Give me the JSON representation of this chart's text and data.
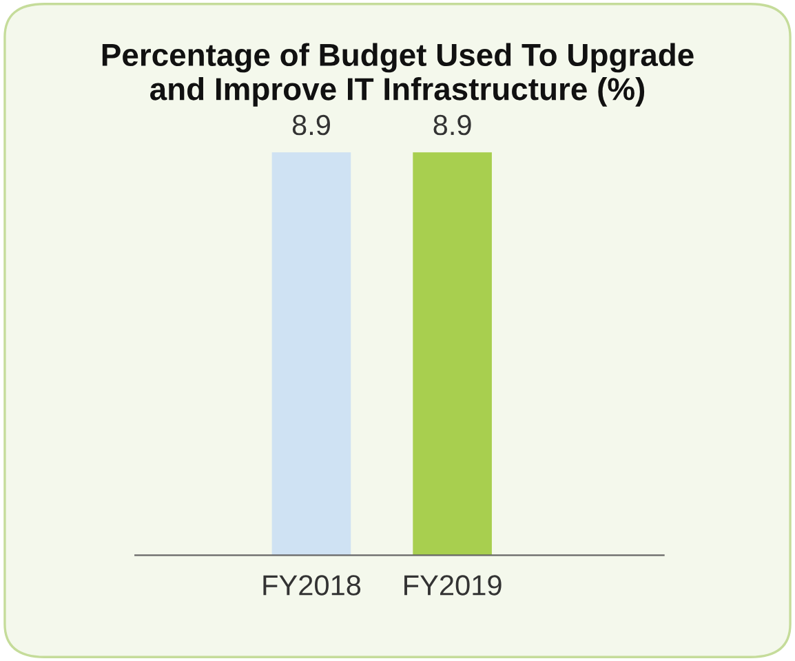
{
  "chart_data": {
    "type": "bar",
    "title": "Percentage of Budget Used To Upgrade\nand Improve IT Infrastructure (%)",
    "categories": [
      "FY2018",
      "FY2019"
    ],
    "values": [
      8.9,
      8.9
    ],
    "colors": [
      "#cfe2f3",
      "#a8cf4f"
    ],
    "data_labels": true,
    "grid": false,
    "legend": false
  }
}
